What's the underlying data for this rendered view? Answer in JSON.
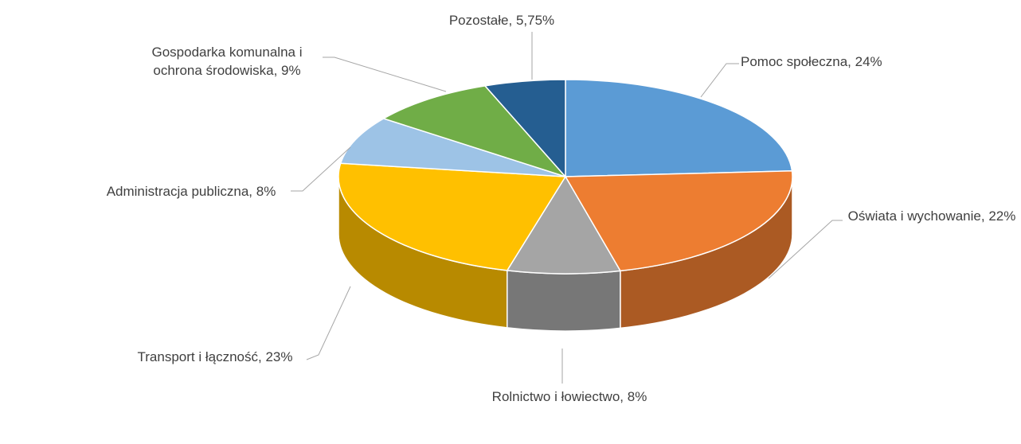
{
  "chart_data": {
    "type": "pie",
    "three_d": true,
    "categories": [
      "Pomoc społeczna,",
      "Oświata i wychowanie,",
      "Rolnictwo i łowiectwo,",
      "Transport i łączność,",
      "Administracja publiczna,",
      "Gospodarka komunalna i ochrona środowiska,",
      "Pozostałe,"
    ],
    "values": [
      24,
      22,
      8,
      23,
      8,
      9,
      5.75
    ],
    "value_labels": [
      "24%",
      "22%",
      "8%",
      "23%",
      "8%",
      "9%",
      "5,75%"
    ],
    "colors": [
      "#5b9bd5",
      "#ed7d31",
      "#a5a5a5",
      "#ffc000",
      "#9dc3e6",
      "#70ad47",
      "#255e91"
    ]
  }
}
